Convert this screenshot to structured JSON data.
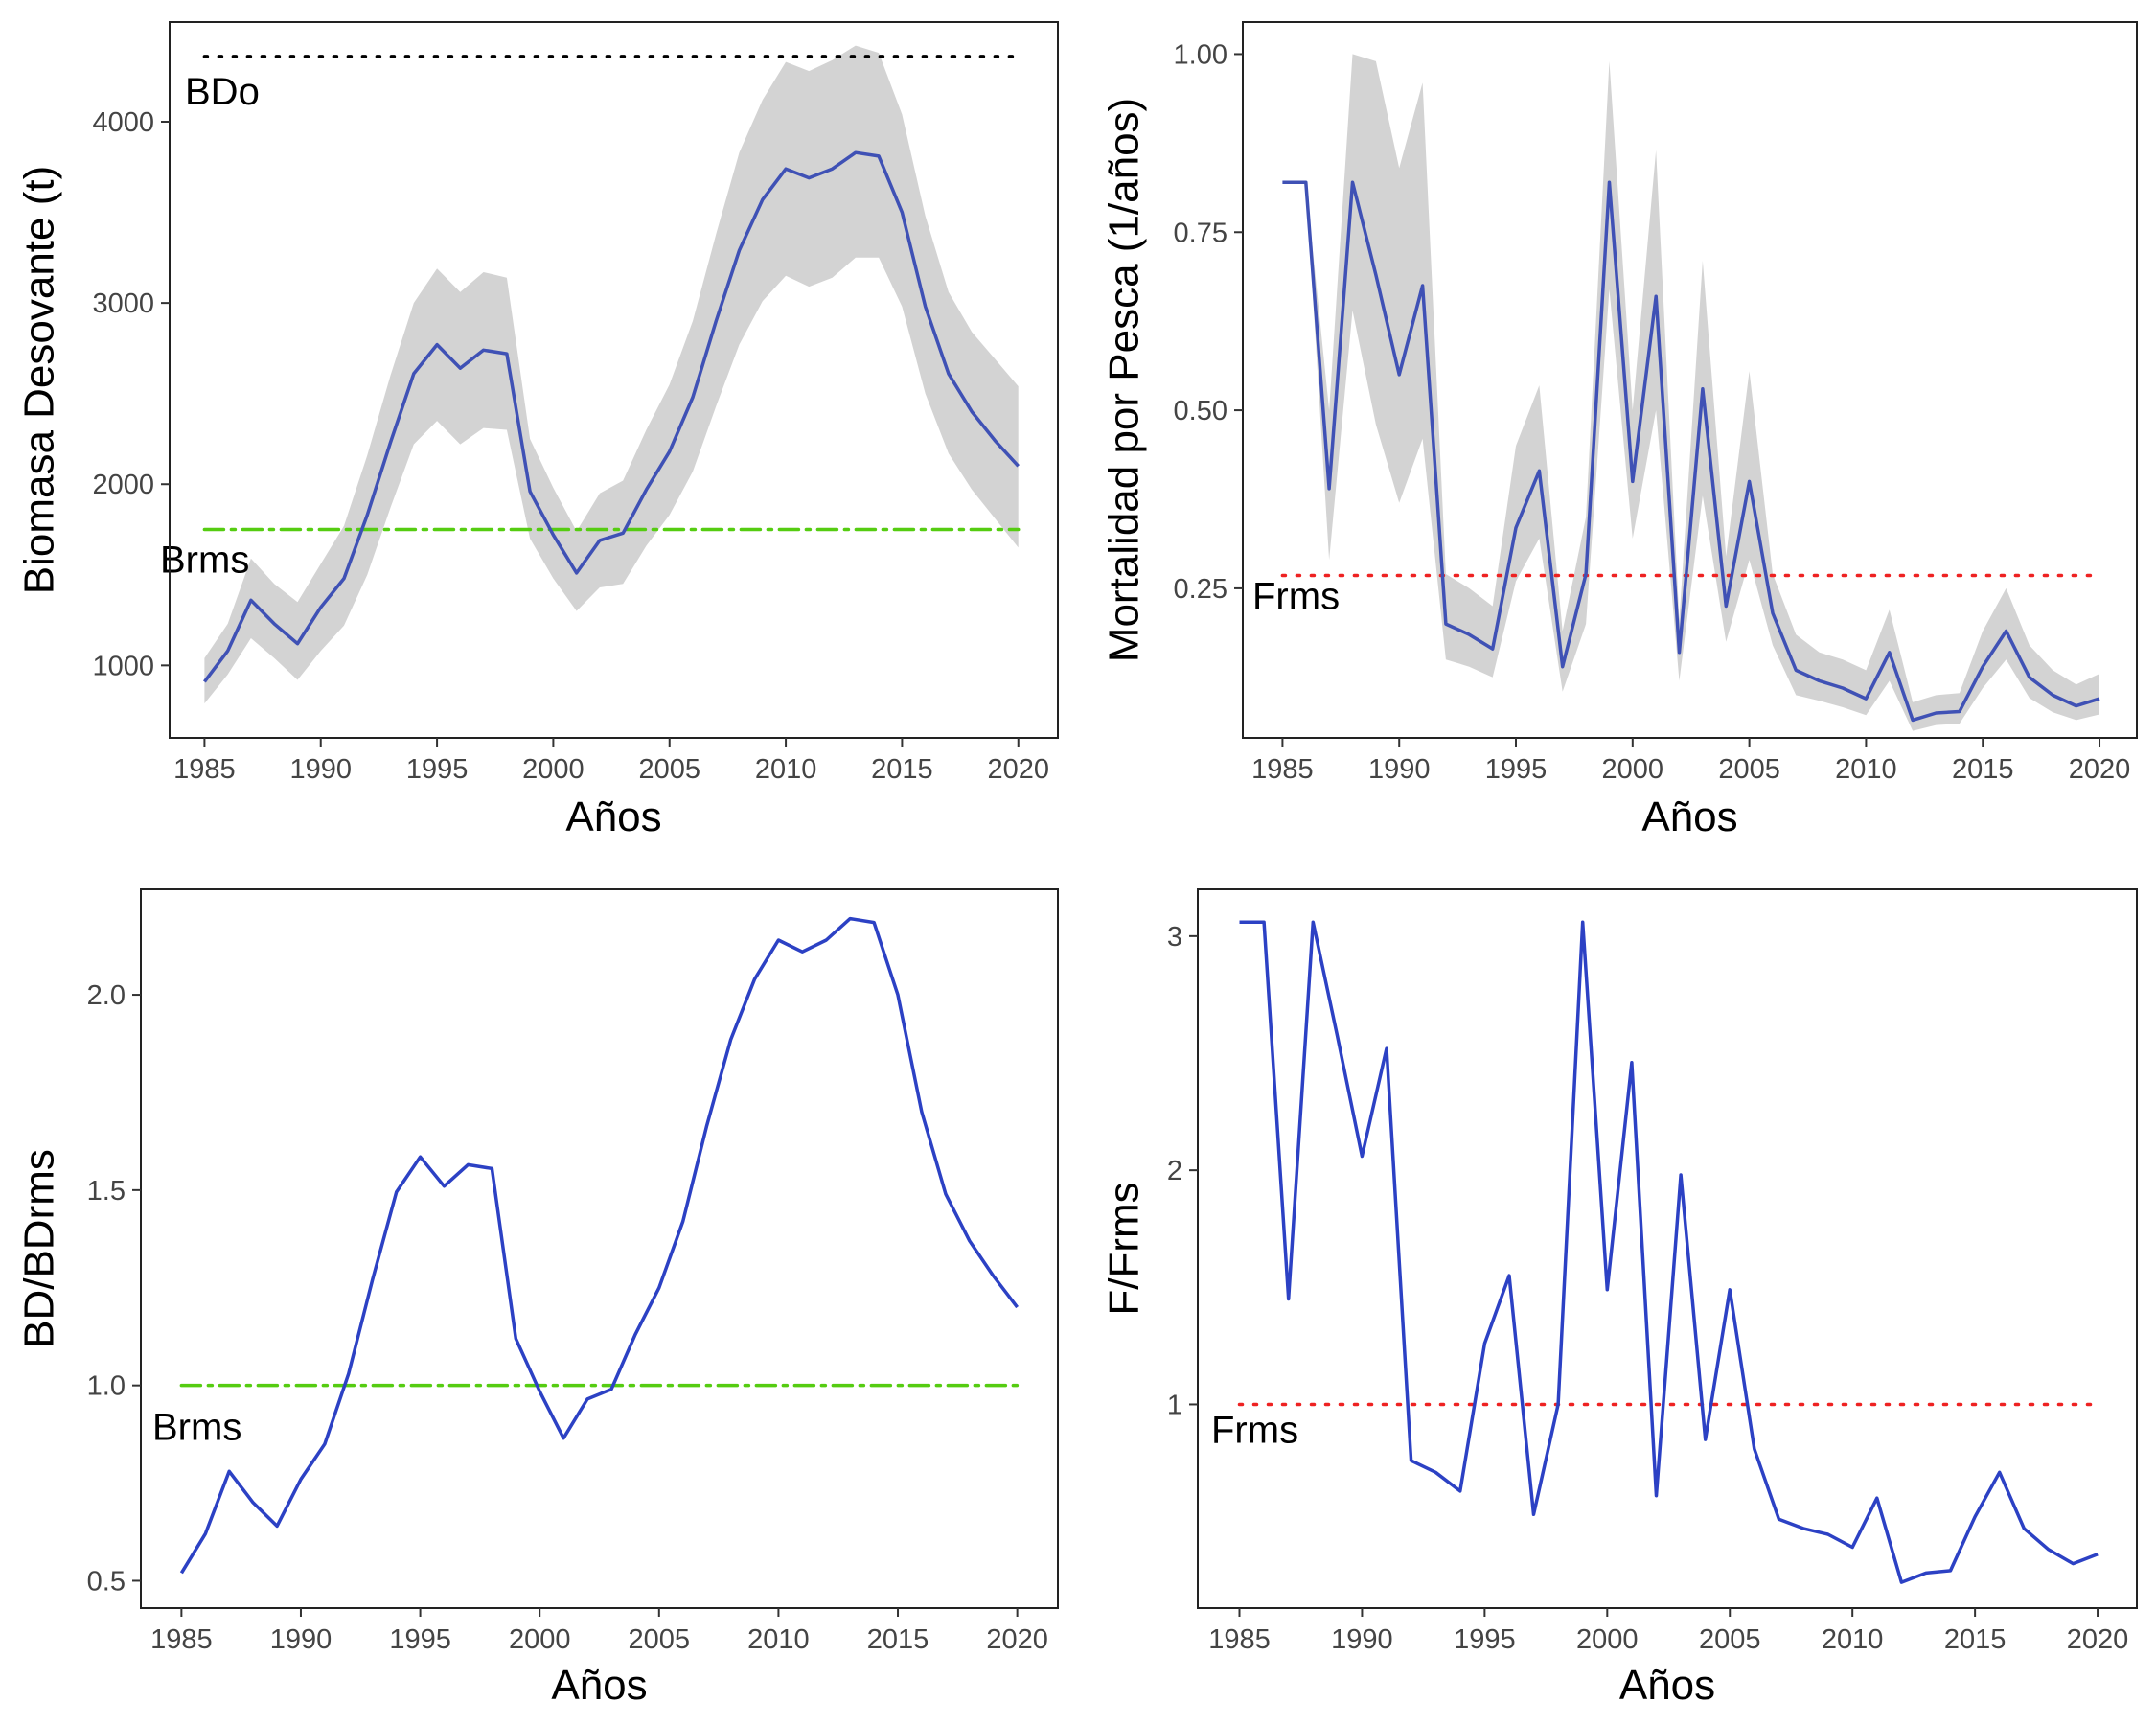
{
  "chart_data": [
    {
      "type": "line",
      "xlabel": "Años",
      "ylabel": "Biomasa Desovante (t)",
      "x": [
        1985,
        1986,
        1987,
        1988,
        1989,
        1990,
        1991,
        1992,
        1993,
        1994,
        1995,
        1996,
        1997,
        1998,
        1999,
        2000,
        2001,
        2002,
        2003,
        2004,
        2005,
        2006,
        2007,
        2008,
        2009,
        2010,
        2011,
        2012,
        2013,
        2014,
        2015,
        2016,
        2017,
        2018,
        2019,
        2020
      ],
      "series": [
        {
          "values": [
            910,
            1080,
            1360,
            1230,
            1120,
            1320,
            1480,
            1830,
            2230,
            2610,
            2770,
            2640,
            2740,
            2720,
            1960,
            1720,
            1510,
            1690,
            1730,
            1970,
            2180,
            2480,
            2900,
            3290,
            3570,
            3740,
            3690,
            3740,
            3830,
            3810,
            3500,
            2980,
            2610,
            2400,
            2240,
            2100
          ]
        }
      ],
      "band_lower": [
        790,
        950,
        1150,
        1040,
        920,
        1080,
        1220,
        1500,
        1870,
        2220,
        2350,
        2220,
        2310,
        2300,
        1700,
        1480,
        1300,
        1430,
        1450,
        1660,
        1830,
        2070,
        2430,
        2770,
        3010,
        3150,
        3090,
        3140,
        3250,
        3250,
        2980,
        2500,
        2170,
        1970,
        1810,
        1650
      ],
      "band_upper": [
        1040,
        1230,
        1590,
        1450,
        1350,
        1560,
        1770,
        2160,
        2600,
        3000,
        3190,
        3060,
        3170,
        3140,
        2250,
        1980,
        1740,
        1950,
        2020,
        2300,
        2550,
        2900,
        3380,
        3830,
        4120,
        4330,
        4280,
        4340,
        4420,
        4380,
        4040,
        3480,
        3060,
        2840,
        2690,
        2540
      ],
      "reference_lines": [
        {
          "label": "BDo",
          "value": 4360,
          "style": "dotted",
          "color": "#000000"
        },
        {
          "label": "Brms",
          "value": 1750,
          "style": "dash-dot",
          "color": "#55cc11"
        }
      ],
      "yticks": [
        1000,
        2000,
        3000,
        4000
      ],
      "xticks": [
        1985,
        1990,
        1995,
        2000,
        2005,
        2010,
        2015,
        2020
      ],
      "xlim": [
        1983.5,
        2021.7
      ],
      "ylim": [
        600,
        4550
      ],
      "line_color": "#3f51b5",
      "band_color": "#d3d3d3"
    },
    {
      "type": "line",
      "xlabel": "Años",
      "ylabel": "Mortalidad por Pesca (1/años)",
      "x": [
        1985,
        1986,
        1987,
        1988,
        1989,
        1990,
        1991,
        1992,
        1993,
        1994,
        1995,
        1996,
        1997,
        1998,
        1999,
        2000,
        2001,
        2002,
        2003,
        2004,
        2005,
        2006,
        2007,
        2008,
        2009,
        2010,
        2011,
        2012,
        2013,
        2014,
        2015,
        2016,
        2017,
        2018,
        2019,
        2020
      ],
      "series": [
        {
          "values": [
            0.82,
            0.82,
            0.39,
            0.82,
            0.69,
            0.55,
            0.675,
            0.2,
            0.185,
            0.165,
            0.335,
            0.415,
            0.14,
            0.27,
            0.82,
            0.4,
            0.66,
            0.16,
            0.53,
            0.225,
            0.4,
            0.215,
            0.135,
            0.12,
            0.11,
            0.095,
            0.16,
            0.065,
            0.075,
            0.077,
            0.14,
            0.19,
            0.125,
            0.1,
            0.085,
            0.095
          ]
        }
      ],
      "band_lower": [
        0.82,
        0.82,
        0.29,
        0.64,
        0.48,
        0.37,
        0.46,
        0.15,
        0.14,
        0.125,
        0.26,
        0.32,
        0.105,
        0.2,
        0.67,
        0.32,
        0.5,
        0.12,
        0.38,
        0.175,
        0.29,
        0.17,
        0.1,
        0.092,
        0.083,
        0.072,
        0.12,
        0.05,
        0.058,
        0.06,
        0.11,
        0.15,
        0.096,
        0.076,
        0.065,
        0.073
      ],
      "band_upper": [
        0.82,
        0.82,
        0.5,
        1.0,
        0.99,
        0.84,
        0.96,
        0.27,
        0.25,
        0.225,
        0.45,
        0.535,
        0.19,
        0.35,
        0.99,
        0.5,
        0.865,
        0.205,
        0.71,
        0.295,
        0.555,
        0.27,
        0.185,
        0.16,
        0.15,
        0.135,
        0.22,
        0.09,
        0.1,
        0.103,
        0.19,
        0.25,
        0.17,
        0.135,
        0.115,
        0.13
      ],
      "reference_lines": [
        {
          "label": "Frms",
          "value": 0.268,
          "style": "dotted",
          "color": "#ee2222"
        }
      ],
      "yticks": [
        0.25,
        0.5,
        0.75,
        1.0
      ],
      "ytick_labels": [
        "0.25",
        "0.50",
        "0.75",
        "1.00"
      ],
      "xticks": [
        1985,
        1990,
        1995,
        2000,
        2005,
        2010,
        2015,
        2020
      ],
      "xlim": [
        1983.3,
        2021.6
      ],
      "ylim": [
        0.04,
        1.045
      ],
      "line_color": "#3f51b5",
      "band_color": "#d3d3d3"
    },
    {
      "type": "line",
      "xlabel": "Años",
      "ylabel": "BD/BDrms",
      "x": [
        1985,
        1986,
        1987,
        1988,
        1989,
        1990,
        1991,
        1992,
        1993,
        1994,
        1995,
        1996,
        1997,
        1998,
        1999,
        2000,
        2001,
        2002,
        2003,
        2004,
        2005,
        2006,
        2007,
        2008,
        2009,
        2010,
        2011,
        2012,
        2013,
        2014,
        2015,
        2016,
        2017,
        2018,
        2019,
        2020
      ],
      "series": [
        {
          "values": [
            0.52,
            0.62,
            0.78,
            0.7,
            0.64,
            0.76,
            0.85,
            1.03,
            1.27,
            1.495,
            1.585,
            1.51,
            1.565,
            1.555,
            1.12,
            0.985,
            0.865,
            0.965,
            0.99,
            1.13,
            1.25,
            1.42,
            1.665,
            1.885,
            2.04,
            2.14,
            2.11,
            2.14,
            2.195,
            2.185,
            2.0,
            1.7,
            1.49,
            1.37,
            1.28,
            1.2
          ]
        }
      ],
      "reference_lines": [
        {
          "label": "Brms",
          "value": 1.0,
          "style": "dash-dot",
          "color": "#55cc11"
        }
      ],
      "yticks": [
        0.5,
        1.0,
        1.5,
        2.0
      ],
      "ytick_labels": [
        "0.5",
        "1.0",
        "1.5",
        "2.0"
      ],
      "xticks": [
        1985,
        1990,
        1995,
        2000,
        2005,
        2010,
        2015,
        2020
      ],
      "xlim": [
        1983.3,
        2021.7
      ],
      "ylim": [
        0.43,
        2.27
      ],
      "line_color": "#2c41c4"
    },
    {
      "type": "line",
      "xlabel": "Años",
      "ylabel": "F/Frms",
      "x": [
        1985,
        1986,
        1987,
        1988,
        1989,
        1990,
        1991,
        1992,
        1993,
        1994,
        1995,
        1996,
        1997,
        1998,
        1999,
        2000,
        2001,
        2002,
        2003,
        2004,
        2005,
        2006,
        2007,
        2008,
        2009,
        2010,
        2011,
        2012,
        2013,
        2014,
        2015,
        2016,
        2017,
        2018,
        2019,
        2020
      ],
      "series": [
        {
          "values": [
            3.06,
            3.06,
            1.45,
            3.06,
            2.57,
            2.06,
            2.52,
            0.76,
            0.71,
            0.63,
            1.26,
            1.55,
            0.53,
            1.0,
            3.06,
            1.49,
            2.46,
            0.61,
            1.98,
            0.85,
            1.49,
            0.81,
            0.51,
            0.47,
            0.445,
            0.39,
            0.6,
            0.24,
            0.28,
            0.29,
            0.52,
            0.71,
            0.47,
            0.38,
            0.32,
            0.36
          ]
        }
      ],
      "reference_lines": [
        {
          "label": "Frms",
          "value": 1.0,
          "style": "dotted",
          "color": "#ee2222"
        }
      ],
      "yticks": [
        1,
        2,
        3
      ],
      "ytick_labels": [
        "1",
        "2",
        "3"
      ],
      "xticks": [
        1985,
        1990,
        1995,
        2000,
        2005,
        2010,
        2015,
        2020
      ],
      "xlim": [
        1983.3,
        2021.6
      ],
      "ylim": [
        0.13,
        3.2
      ],
      "line_color": "#2c41c4"
    }
  ]
}
